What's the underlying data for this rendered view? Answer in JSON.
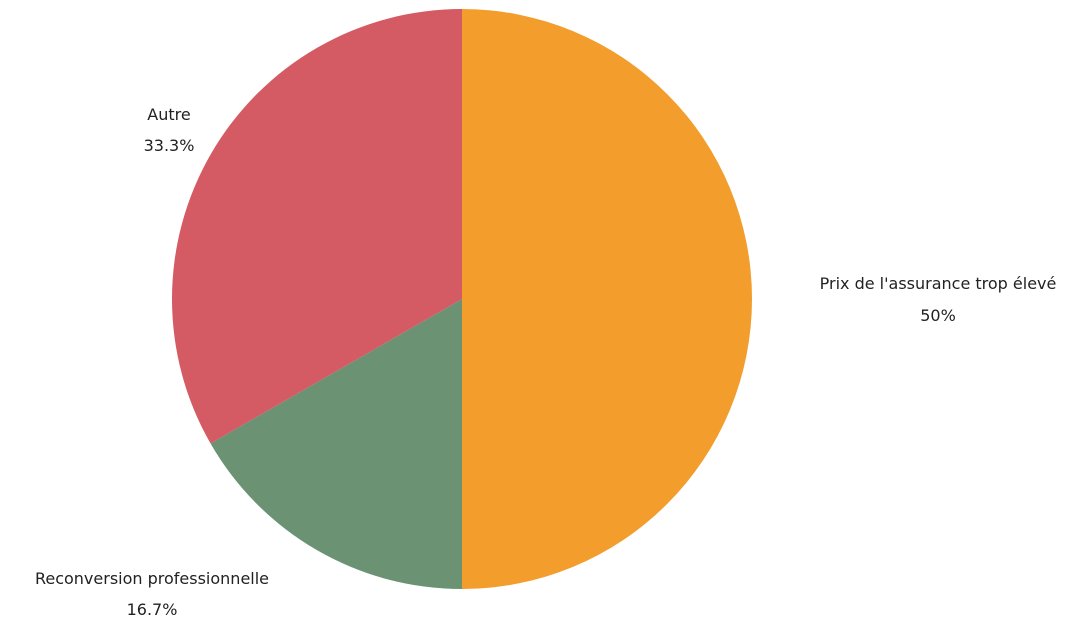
{
  "chart_data": {
    "type": "pie",
    "title": "",
    "start_angle_deg": 90,
    "direction": "clockwise",
    "legend": "none",
    "slices": [
      {
        "label": "Prix de l'assurance trop élevé",
        "value": 50,
        "display": "50%",
        "color": "#F29D2C"
      },
      {
        "label": "Reconversion professionnelle",
        "value": 16.7,
        "display": "16.7%",
        "color": "#6A9273"
      },
      {
        "label": "Autre",
        "value": 33.3,
        "display": "33.3%",
        "color": "#D45A63"
      }
    ]
  }
}
